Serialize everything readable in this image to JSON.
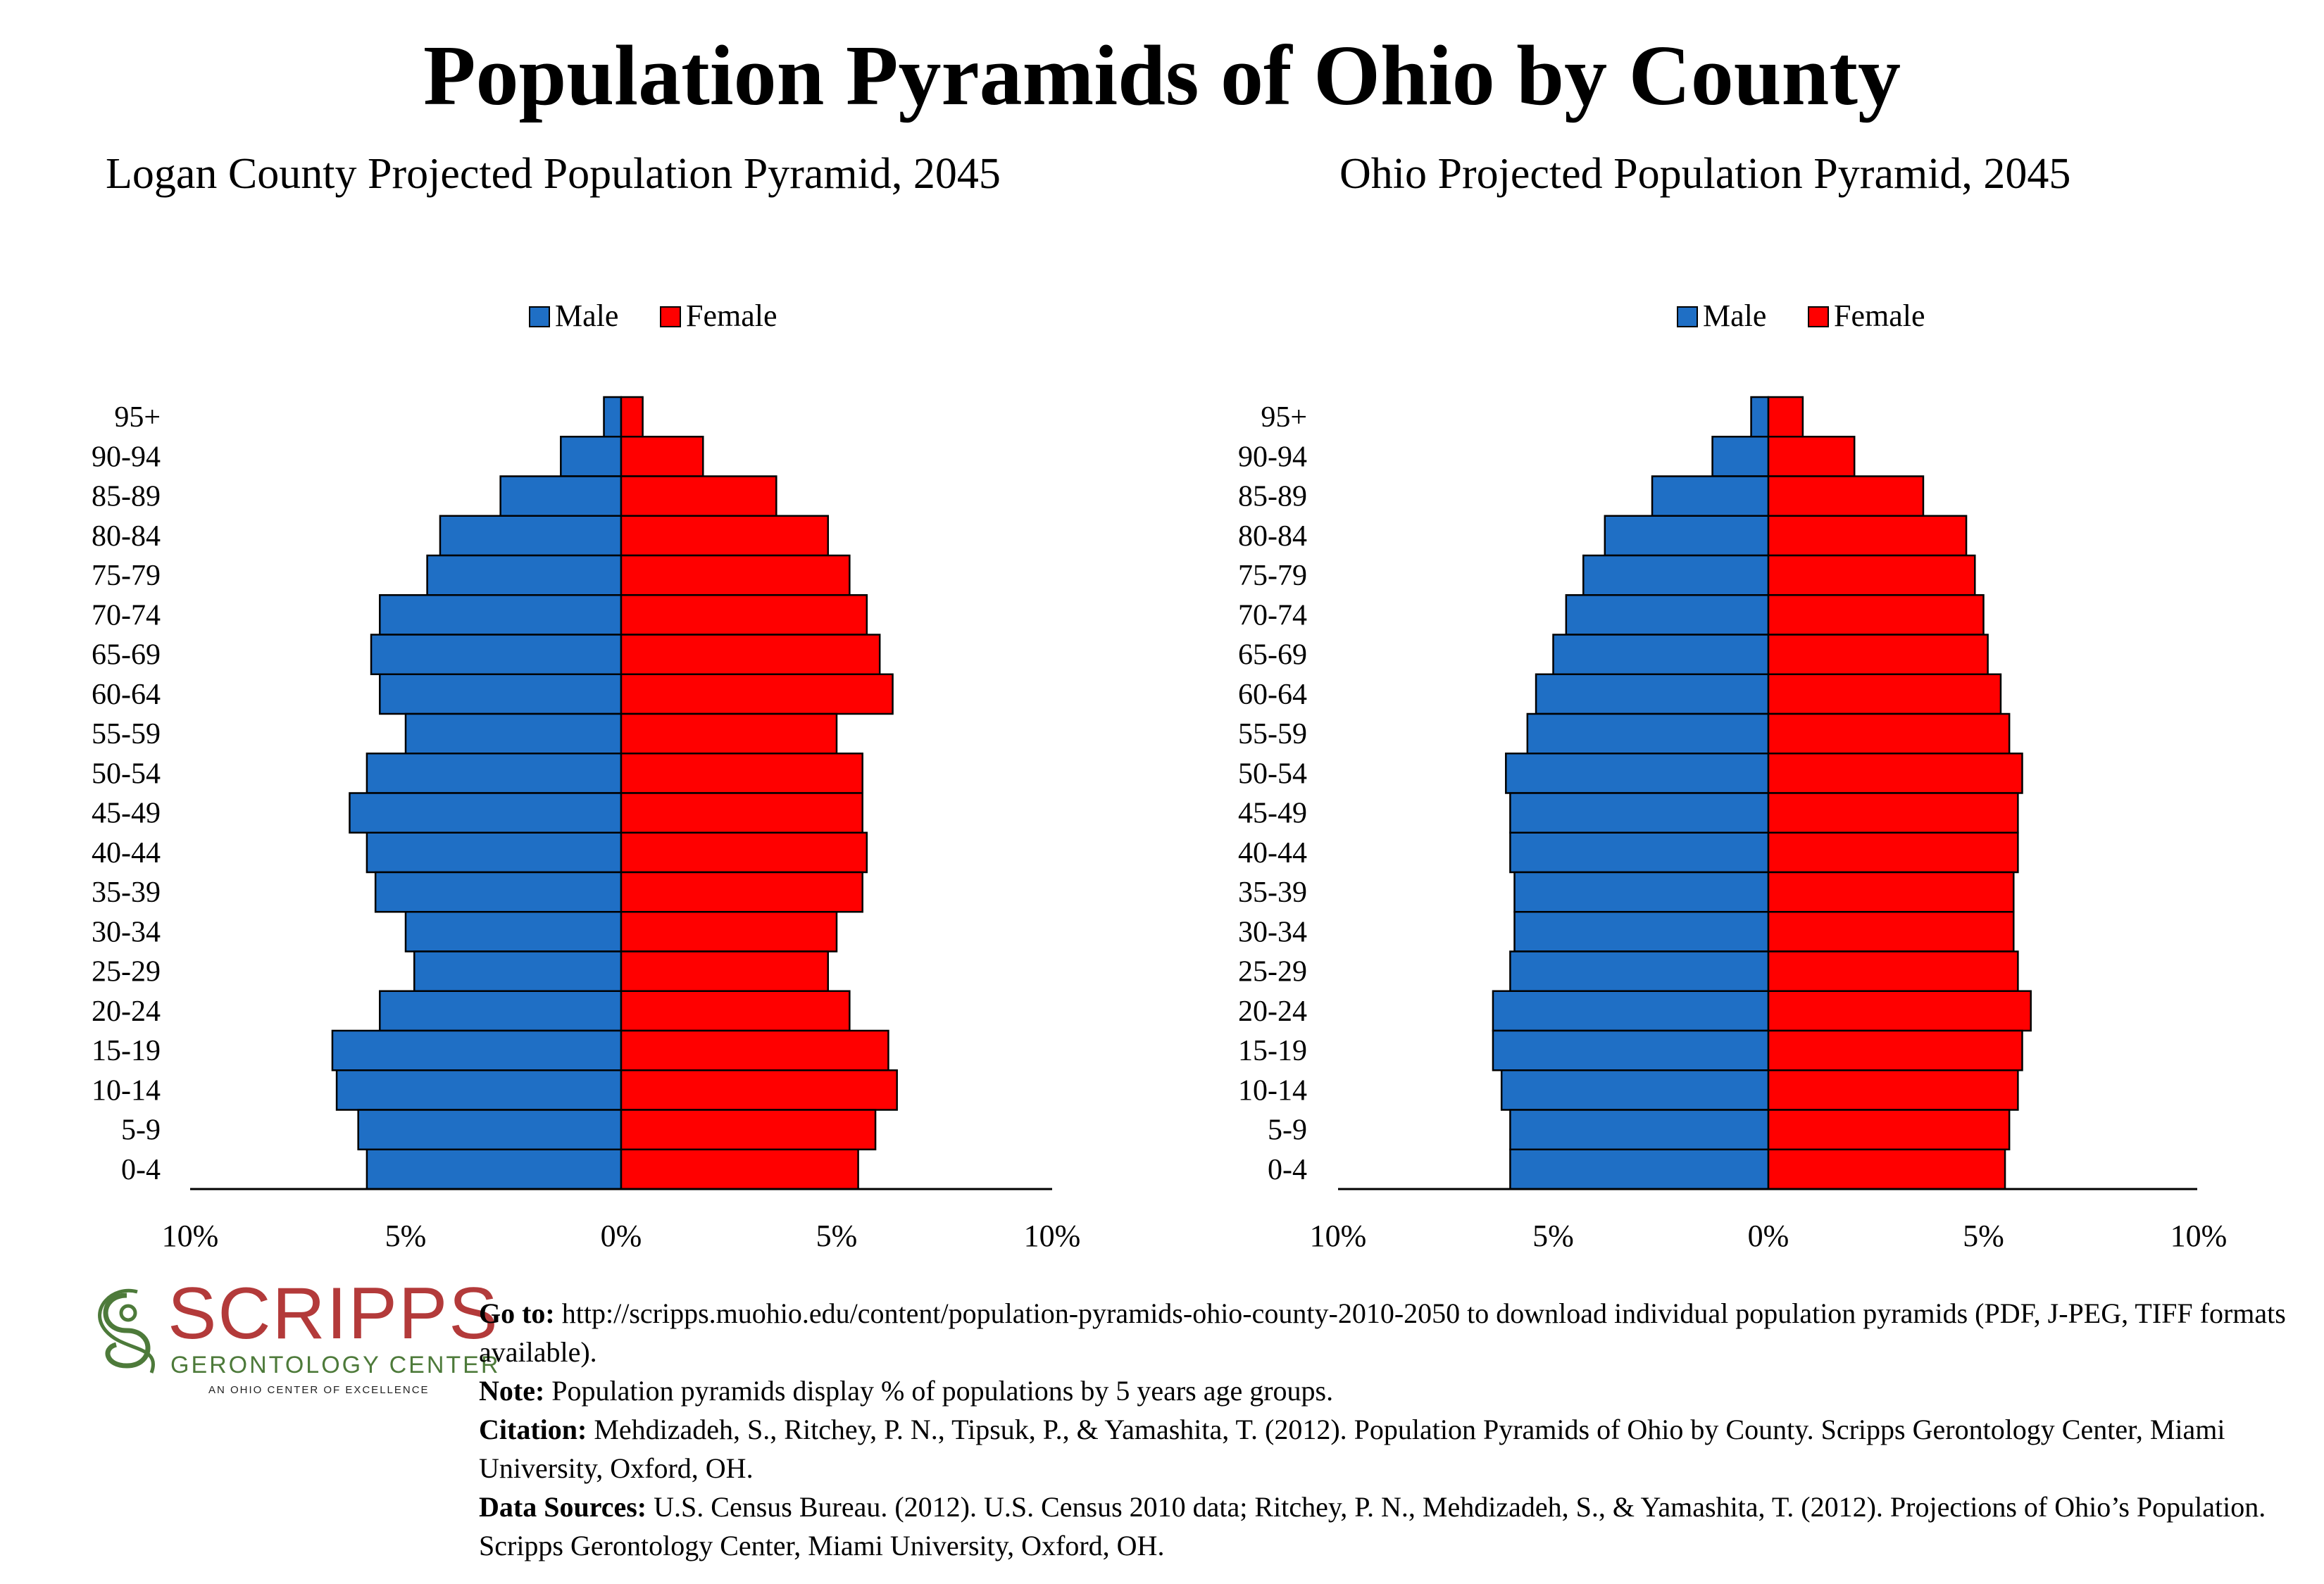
{
  "title": "Population Pyramids of Ohio by County",
  "colors": {
    "male": "#1f6fc5",
    "female": "#ff0000",
    "outline": "#000000"
  },
  "chart_data": [
    {
      "type": "bar",
      "orientation": "horizontal-pyramid",
      "title": "Logan County Projected Population Pyramid, 2045",
      "legend_position": "top-center",
      "categories": [
        "95+",
        "90-94",
        "85-89",
        "80-84",
        "75-79",
        "70-74",
        "65-69",
        "60-64",
        "55-59",
        "50-54",
        "45-49",
        "40-44",
        "35-39",
        "30-34",
        "25-29",
        "20-24",
        "15-19",
        "10-14",
        "5-9",
        "0-4"
      ],
      "series": [
        {
          "name": "Male",
          "values": [
            0.4,
            1.4,
            2.8,
            4.2,
            4.5,
            5.6,
            5.8,
            5.6,
            5.0,
            5.9,
            6.3,
            5.9,
            5.7,
            5.0,
            4.8,
            5.6,
            6.7,
            6.6,
            6.1,
            5.9
          ]
        },
        {
          "name": "Female",
          "values": [
            0.5,
            1.9,
            3.6,
            4.8,
            5.3,
            5.7,
            6.0,
            6.3,
            5.0,
            5.6,
            5.6,
            5.7,
            5.6,
            5.0,
            4.8,
            5.3,
            6.2,
            6.4,
            5.9,
            5.5
          ]
        }
      ],
      "xlim": [
        -10,
        10
      ],
      "ticks": [
        "10%",
        "5%",
        "0%",
        "5%",
        "10%"
      ],
      "grid": false
    },
    {
      "type": "bar",
      "orientation": "horizontal-pyramid",
      "title": "Ohio Projected Population Pyramid, 2045",
      "legend_position": "top-center",
      "categories": [
        "95+",
        "90-94",
        "85-89",
        "80-84",
        "75-79",
        "70-74",
        "65-69",
        "60-64",
        "55-59",
        "50-54",
        "45-49",
        "40-44",
        "35-39",
        "30-34",
        "25-29",
        "20-24",
        "15-19",
        "10-14",
        "5-9",
        "0-4"
      ],
      "series": [
        {
          "name": "Male",
          "values": [
            0.4,
            1.3,
            2.7,
            3.8,
            4.3,
            4.7,
            5.0,
            5.4,
            5.6,
            6.1,
            6.0,
            6.0,
            5.9,
            5.9,
            6.0,
            6.4,
            6.4,
            6.2,
            6.0,
            6.0
          ]
        },
        {
          "name": "Female",
          "values": [
            0.8,
            2.0,
            3.6,
            4.6,
            4.8,
            5.0,
            5.1,
            5.4,
            5.6,
            5.9,
            5.8,
            5.8,
            5.7,
            5.7,
            5.8,
            6.1,
            5.9,
            5.8,
            5.6,
            5.5
          ]
        }
      ],
      "xlim": [
        -10,
        10
      ],
      "ticks": [
        "10%",
        "5%",
        "0%",
        "5%",
        "10%"
      ],
      "grid": false
    }
  ],
  "logo": {
    "word": "SCRIPPS",
    "subtitle": "GERONTOLOGY CENTER",
    "tagline": "AN OHIO CENTER OF EXCELLENCE"
  },
  "notes": {
    "goto_label": "Go to:",
    "goto_text": " http://scripps.muohio.edu/content/population-pyramids-ohio-county-2010-2050 to download individual population pyramids (PDF, J-PEG, TIFF formats available).",
    "note_label": "Note:",
    "note_text": " Population pyramids display % of populations by 5 years age groups.",
    "citation_label": "Citation:",
    "citation_text": " Mehdizadeh, S., Ritchey, P. N., Tipsuk, P., & Yamashita, T. (2012). Population Pyramids of Ohio by County. Scripps Gerontology Center, Miami University, Oxford, OH.",
    "sources_label": "Data Sources:",
    "sources_text": " U.S. Census Bureau. (2012). U.S. Census 2010 data; Ritchey, P. N., Mehdizadeh, S., & Yamashita, T. (2012). Projections of Ohio’s Population. Scripps Gerontology Center, Miami University, Oxford, OH."
  }
}
